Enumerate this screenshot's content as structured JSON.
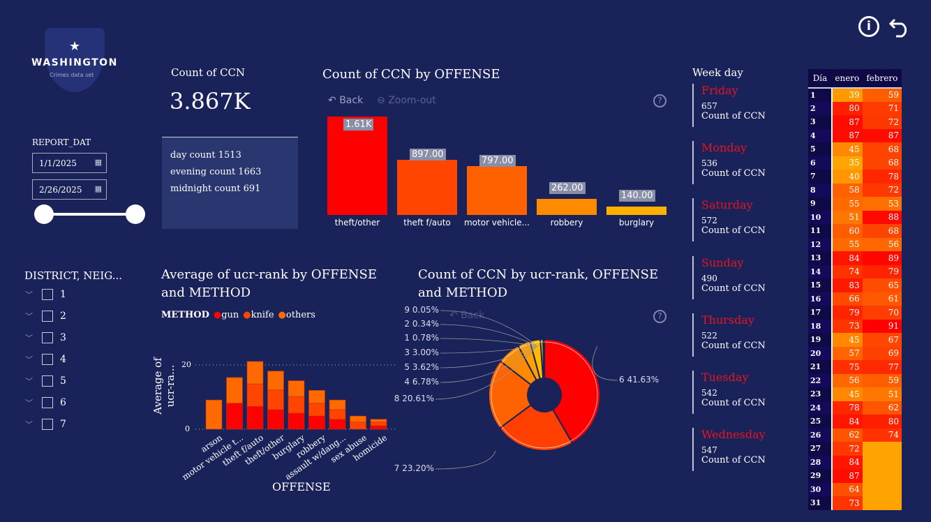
{
  "colors": {
    "background": "#1a2359",
    "gun": "#ff0000",
    "knife": "#ff4500",
    "others": "#ff6a00",
    "weekday": "#e8141e"
  },
  "logo": {
    "title": "WASHINGTON",
    "subtitle": "Crimes data set"
  },
  "top_icons": [
    "info-icon",
    "undo-icon"
  ],
  "filter": {
    "label": "REPORT_DAT",
    "start": "1/1/2025",
    "end": "2/26/2025",
    "range_fraction": [
      0,
      1
    ]
  },
  "kpi": {
    "label": "Count of CCN",
    "value": "3.867K",
    "lines": [
      "day count 1513",
      "evening count 1663",
      "midnight count 691"
    ]
  },
  "district": {
    "title": "DISTRICT, NEIG...",
    "items": [
      "1",
      "2",
      "3",
      "4",
      "5",
      "6",
      "7"
    ]
  },
  "chart_data": [
    {
      "type": "bar",
      "title": "Count of CCN by OFFENSE",
      "toolbar": {
        "back": "Back",
        "zoom_out": "Zoom-out",
        "help": "?"
      },
      "categories": [
        "theft/other",
        "theft f/auto",
        "motor vehicle...",
        "robbery",
        "burglary"
      ],
      "values": [
        1610,
        897,
        797,
        262,
        140
      ],
      "data_labels": [
        "1.61K",
        "897.00",
        "797.00",
        "262.00",
        "140.00"
      ],
      "colors": [
        "#ff0000",
        "#ff4500",
        "#ff6000",
        "#ff8c00",
        "#ffb000"
      ]
    },
    {
      "type": "bar",
      "stacked": true,
      "title": "Average of ucr-rank by OFFENSE and METHOD",
      "legend_title": "METHOD",
      "legend_position": "top-left",
      "xlabel": "OFFENSE",
      "ylabel": "Average of ucr-ra...",
      "yticks": [
        "0",
        "20"
      ],
      "ylim": [
        0,
        24
      ],
      "grid": true,
      "categories": [
        "arson",
        "motor vehicle t...",
        "theft f/auto",
        "theft/other",
        "burglary",
        "robbery",
        "assault w/dang...",
        "sex abuse",
        "homicide"
      ],
      "series": [
        {
          "name": "gun",
          "values": [
            0,
            8.1,
            7.1,
            6.1,
            5.0,
            4.1,
            3.1,
            0,
            1.1
          ]
        },
        {
          "name": "knife",
          "values": [
            0,
            0,
            7.0,
            6.1,
            5.2,
            4.0,
            3.0,
            2.2,
            1.1
          ]
        },
        {
          "name": "others",
          "values": [
            9.1,
            8.0,
            7.0,
            5.9,
            4.9,
            4.0,
            3.0,
            1.9,
            0.9
          ]
        }
      ]
    },
    {
      "type": "pie",
      "donut": true,
      "title": "Count of CCN by ucr-rank, OFFENSE and METHOD",
      "toolbar": {
        "back": "Back",
        "help": "?"
      },
      "slices": [
        {
          "label": "6 41.63%",
          "value": 41.63,
          "color": "#ff0000"
        },
        {
          "label": "7 23.20%",
          "value": 23.2,
          "color": "#ff4000"
        },
        {
          "label": "8 20.61%",
          "value": 20.61,
          "color": "#ff6200"
        },
        {
          "label": "4 6.78%",
          "value": 6.78,
          "color": "#ff8a00"
        },
        {
          "label": "5 3.62%",
          "value": 3.62,
          "color": "#ffa000"
        },
        {
          "label": "3 3.00%",
          "value": 3.0,
          "color": "#ffbb00"
        },
        {
          "label": "1 0.78%",
          "value": 0.78,
          "color": "#ffcc00"
        },
        {
          "label": "2 0.34%",
          "value": 0.34,
          "color": "#ffd800"
        },
        {
          "label": "9 0.05%",
          "value": 0.05,
          "color": "#ffe000"
        }
      ]
    },
    {
      "type": "table",
      "title": "Week day",
      "rows": [
        {
          "day": "Friday",
          "value": "657",
          "label": "Count of CCN"
        },
        {
          "day": "Monday",
          "value": "536",
          "label": "Count of CCN"
        },
        {
          "day": "Saturday",
          "value": "572",
          "label": "Count of CCN"
        },
        {
          "day": "Sunday",
          "value": "490",
          "label": "Count of CCN"
        },
        {
          "day": "Thursday",
          "value": "522",
          "label": "Count of CCN"
        },
        {
          "day": "Tuesday",
          "value": "542",
          "label": "Count of CCN"
        },
        {
          "day": "Wednesday",
          "value": "547",
          "label": "Count of CCN"
        }
      ]
    },
    {
      "type": "heatmap",
      "columns": [
        "Día",
        "enero",
        "febrero"
      ],
      "enero": [
        39,
        80,
        87,
        87,
        45,
        35,
        40,
        58,
        55,
        51,
        60,
        55,
        84,
        74,
        83,
        66,
        79,
        73,
        45,
        57,
        75,
        56,
        45,
        78,
        84,
        62,
        72,
        84,
        87,
        64,
        73
      ],
      "febrero": [
        59,
        71,
        72,
        87,
        68,
        68,
        78,
        72,
        53,
        88,
        68,
        56,
        89,
        79,
        65,
        61,
        70,
        91,
        67,
        69,
        77,
        59,
        51,
        62,
        80,
        74,
        null,
        null,
        null,
        null,
        null
      ]
    }
  ]
}
